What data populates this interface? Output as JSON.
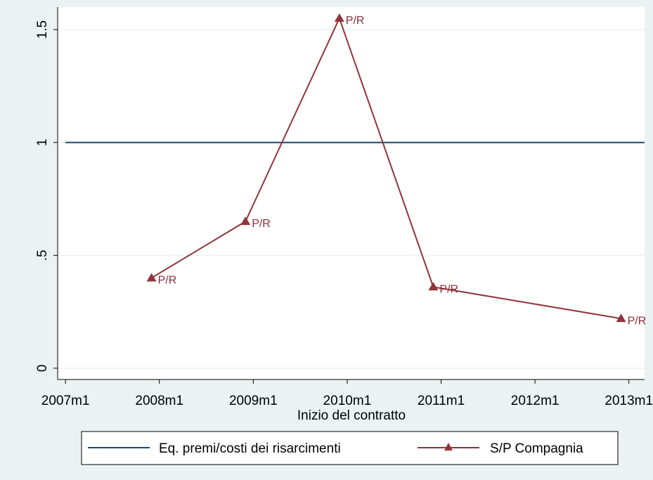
{
  "chart_data": {
    "type": "line",
    "title": "",
    "xlabel": "Inizio del contratto",
    "ylabel": "",
    "x_ticks": [
      "2007m1",
      "2008m1",
      "2009m1",
      "2010m1",
      "2011m1",
      "2012m1",
      "2013m1"
    ],
    "xlim": [
      "2007m1",
      "2013m3"
    ],
    "y_ticks": [
      "0",
      ".5",
      "1",
      "1.5"
    ],
    "ylim": [
      -0.05,
      1.6
    ],
    "grid": true,
    "legend_position": "bottom",
    "series": [
      {
        "name": "Eq. premi/costi dei risarcimenti",
        "color": "#1a476f",
        "marker": "none",
        "x": [
          "2007m1",
          "2013m3"
        ],
        "y": [
          1,
          1
        ]
      },
      {
        "name": "S/P Compagnia",
        "color": "#90353b",
        "marker": "triangle",
        "x": [
          "2007m12",
          "2008m12",
          "2009m12",
          "2010m12",
          "2012m12"
        ],
        "y": [
          0.4,
          0.65,
          1.55,
          0.36,
          0.22
        ],
        "labels": [
          "P/R",
          "P/R",
          "P/R",
          "P/R",
          "P/R"
        ]
      }
    ]
  }
}
